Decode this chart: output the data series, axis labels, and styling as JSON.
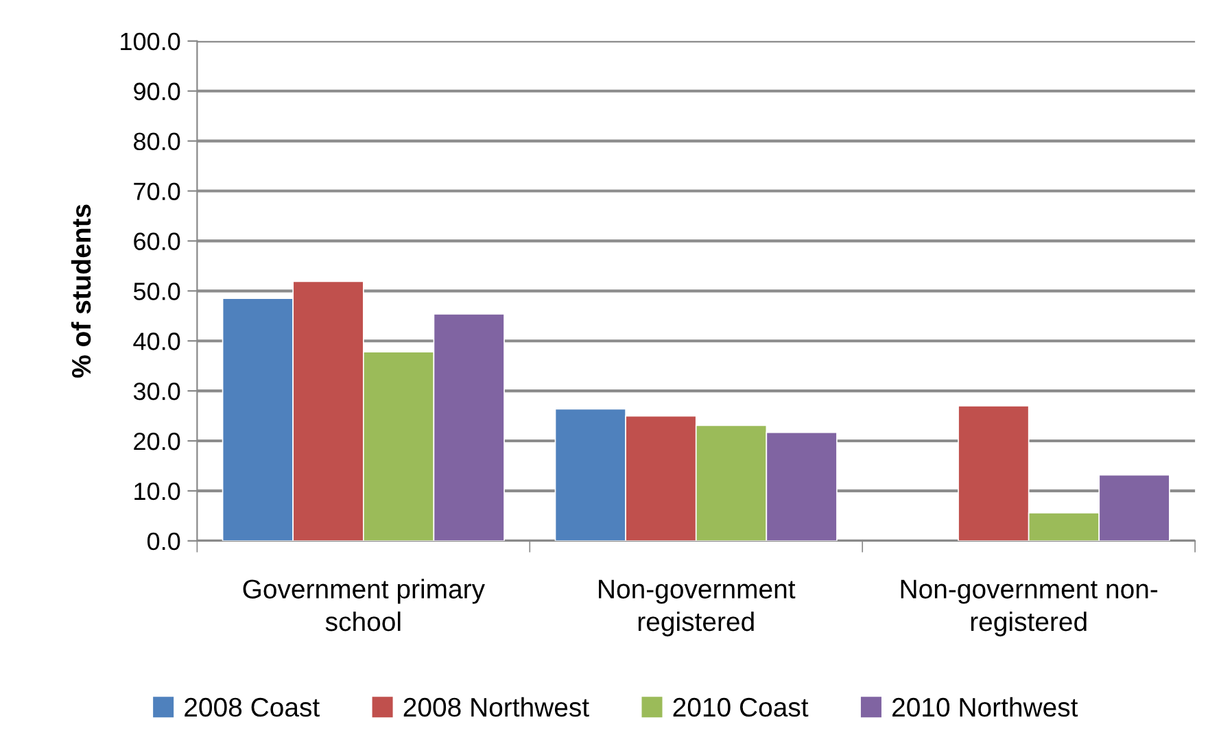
{
  "chart_data": {
    "type": "bar",
    "ylabel": "% of students",
    "categories": [
      "Government primary school",
      "Non-government registered",
      "Non-government non-registered"
    ],
    "series": [
      {
        "name": "2008 Coast",
        "color": "#4f81bd",
        "values": [
          48.5,
          26.4,
          null
        ]
      },
      {
        "name": "2008 Northwest",
        "color": "#c0504d",
        "values": [
          51.9,
          25.0,
          27.0
        ]
      },
      {
        "name": "2010 Coast",
        "color": "#9bbb59",
        "values": [
          37.8,
          23.1,
          5.6
        ]
      },
      {
        "name": "2010 Northwest",
        "color": "#8064a2",
        "values": [
          45.4,
          21.7,
          13.2
        ]
      }
    ],
    "ylim": [
      0,
      100
    ],
    "yticks": [
      {
        "value": 0,
        "label": "0.0"
      },
      {
        "value": 10,
        "label": "10.0"
      },
      {
        "value": 20,
        "label": "20.0"
      },
      {
        "value": 30,
        "label": "30.0"
      },
      {
        "value": 40,
        "label": "40.0"
      },
      {
        "value": 50,
        "label": "50.0"
      },
      {
        "value": 60,
        "label": "60.0"
      },
      {
        "value": 70,
        "label": "70.0"
      },
      {
        "value": 80,
        "label": "80.0"
      },
      {
        "value": 90,
        "label": "90.0"
      },
      {
        "value": 100,
        "label": "100.0"
      }
    ],
    "grid": "y",
    "legend": "bottom"
  }
}
